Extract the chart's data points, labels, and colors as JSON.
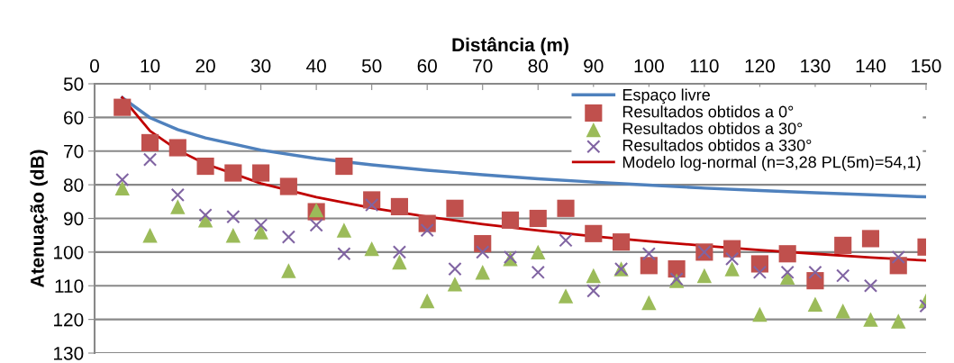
{
  "chart_data": {
    "type": "scatter",
    "xlabel": "Distância (m)",
    "ylabel": "Atenuação (dB)",
    "xlim": [
      0,
      150
    ],
    "xticks": [
      0,
      10,
      20,
      30,
      40,
      50,
      60,
      70,
      80,
      90,
      100,
      110,
      120,
      130,
      140,
      150
    ],
    "ylim": [
      130,
      50
    ],
    "yticks": [
      50,
      60,
      70,
      80,
      90,
      100,
      110,
      120,
      130
    ],
    "grid": "y",
    "legend": "top right",
    "series": [
      {
        "name": "Espaço livre",
        "type": "line",
        "color": "#4f81bd",
        "marker": "none",
        "line_style": "solid",
        "x": [
          5,
          10,
          15,
          20,
          30,
          40,
          50,
          60,
          70,
          80,
          90,
          100,
          110,
          120,
          130,
          140,
          150
        ],
        "values": [
          54.1,
          60.1,
          63.6,
          66.1,
          69.7,
          72.2,
          74.1,
          75.7,
          77.0,
          78.2,
          79.2,
          80.1,
          81.0,
          81.7,
          82.4,
          83.0,
          83.6
        ]
      },
      {
        "name": "Resultados obtidos a 0°",
        "color": "#c0504d",
        "marker": "square",
        "x": [
          5,
          10,
          15,
          20,
          25,
          30,
          35,
          40,
          45,
          50,
          55,
          60,
          65,
          70,
          75,
          80,
          85,
          90,
          95,
          100,
          105,
          110,
          115,
          120,
          125,
          130,
          135,
          140,
          145,
          150
        ],
        "values": [
          57,
          67.5,
          69,
          74.5,
          76.5,
          76.5,
          80.5,
          88,
          74.5,
          84.5,
          86.5,
          91.5,
          87,
          97.5,
          90.5,
          90,
          87,
          94.5,
          97,
          104,
          105,
          100,
          99,
          103.5,
          100.5,
          108.5,
          98,
          96,
          104,
          98.5
        ]
      },
      {
        "name": "Resultados obtidos a 30°",
        "color": "#9bbb59",
        "marker": "triangle",
        "x": [
          5,
          10,
          15,
          20,
          25,
          30,
          35,
          40,
          45,
          50,
          55,
          60,
          65,
          70,
          75,
          80,
          85,
          90,
          95,
          100,
          105,
          110,
          115,
          120,
          125,
          130,
          135,
          140,
          145,
          150
        ],
        "values": [
          81,
          95,
          86.5,
          90.5,
          95,
          94,
          105.5,
          87.5,
          93.5,
          99,
          103,
          114.5,
          109.5,
          106,
          102,
          100,
          113,
          107,
          105,
          115,
          108.5,
          107,
          105,
          118.5,
          107.5,
          115.5,
          117.5,
          120,
          120.5,
          114.5
        ]
      },
      {
        "name": "Resultados obtidos a 330°",
        "color": "#8064a2",
        "marker": "cross",
        "x": [
          5,
          10,
          15,
          20,
          25,
          30,
          35,
          40,
          45,
          50,
          55,
          60,
          65,
          70,
          75,
          80,
          85,
          90,
          95,
          100,
          105,
          110,
          115,
          120,
          125,
          130,
          135,
          140,
          145,
          150
        ],
        "values": [
          78.5,
          72.5,
          83,
          89,
          89.5,
          92,
          95.5,
          92,
          100.5,
          86,
          100,
          93.5,
          105,
          100,
          101.5,
          106,
          96.5,
          111.5,
          105,
          100.5,
          108,
          100,
          102,
          106,
          106,
          106,
          107,
          110,
          101.5,
          116
        ]
      },
      {
        "name": "Modelo log-normal (n=3,28 PL(5m)=54,1)",
        "type": "line",
        "color": "#c00000",
        "marker": "none",
        "line_style": "solid",
        "x": [
          5,
          10,
          15,
          20,
          30,
          40,
          50,
          60,
          70,
          80,
          90,
          100,
          110,
          120,
          130,
          140,
          150
        ],
        "values": [
          54.1,
          64.0,
          69.7,
          73.8,
          79.6,
          83.7,
          86.9,
          89.5,
          91.7,
          93.6,
          95.3,
          96.8,
          98.1,
          99.4,
          100.5,
          101.6,
          102.5
        ]
      }
    ]
  }
}
